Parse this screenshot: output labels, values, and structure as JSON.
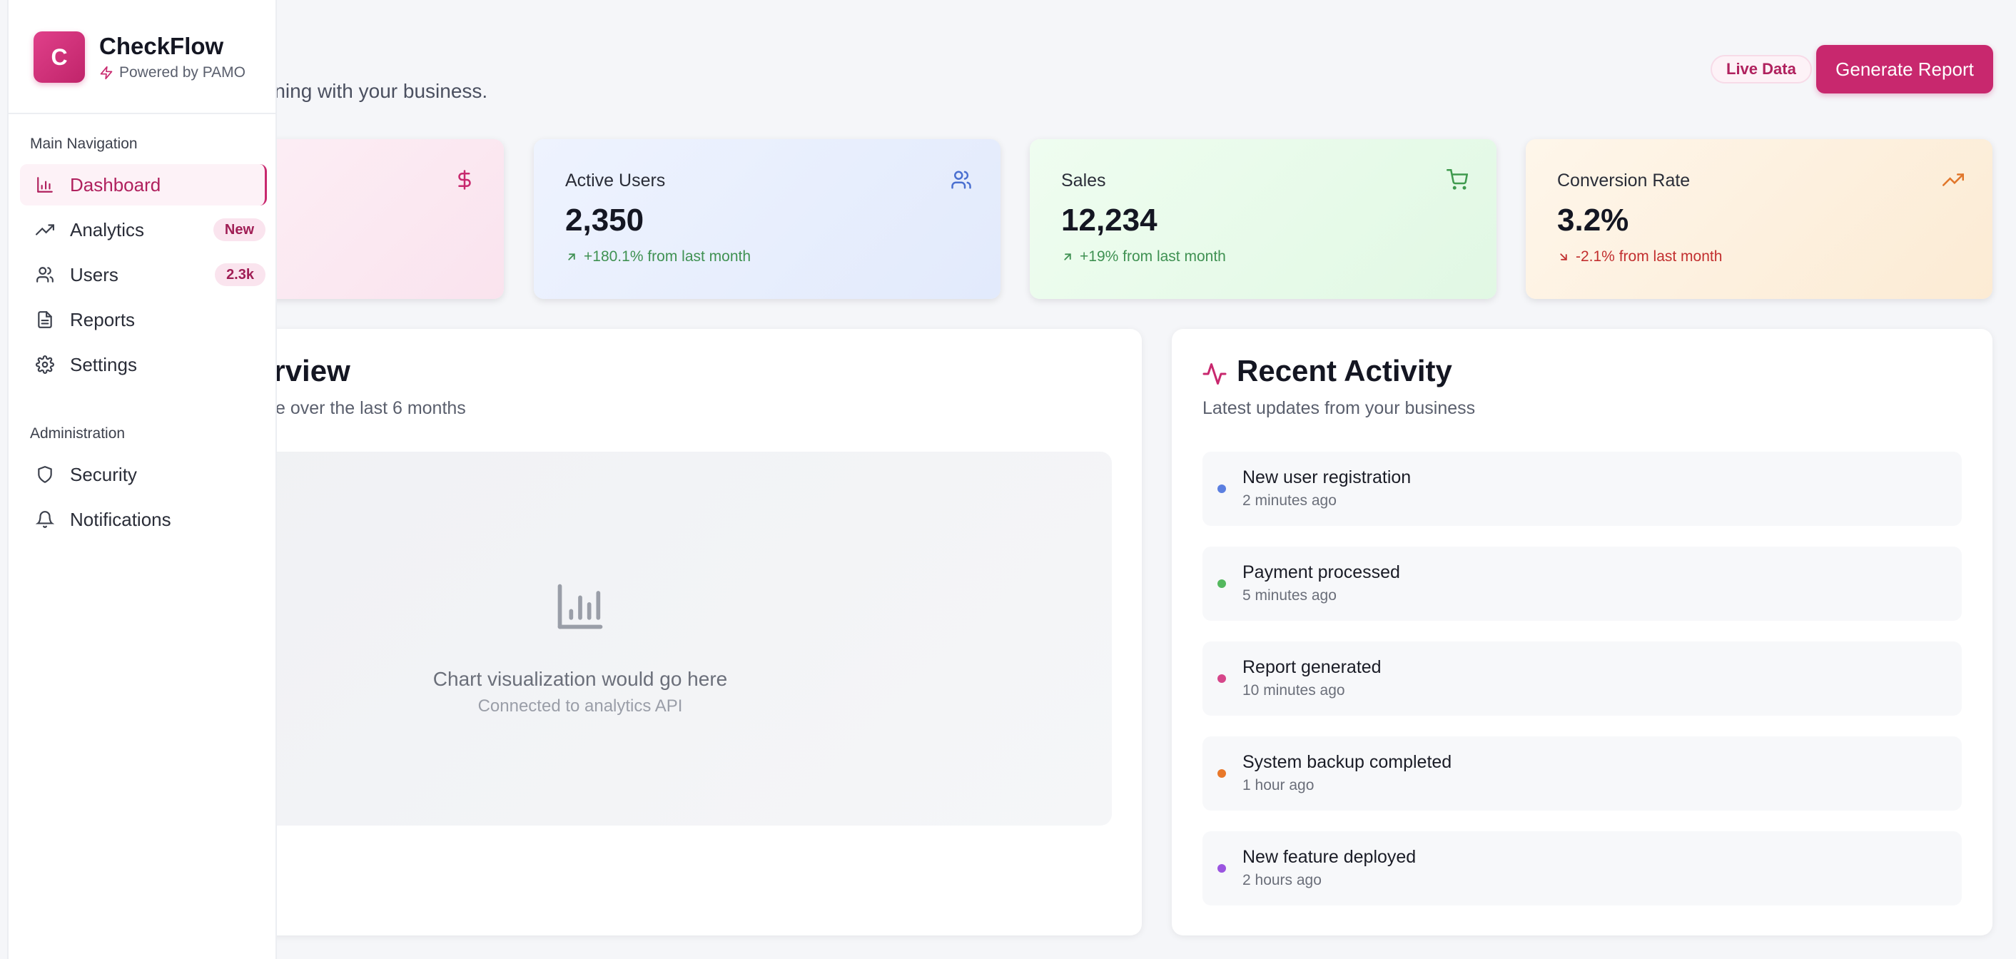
{
  "header": {
    "subtitle": "at's happening with your business.",
    "live_badge": "Live Data",
    "generate_button": "Generate Report"
  },
  "stats": [
    {
      "label": "",
      "value": "",
      "change": "",
      "icon": "dollar-icon"
    },
    {
      "label": "Active Users",
      "value": "2,350",
      "change": "+180.1% from last month",
      "trend": "up",
      "icon": "users-icon"
    },
    {
      "label": "Sales",
      "value": "12,234",
      "change": "+19% from last month",
      "trend": "up",
      "icon": "cart-icon"
    },
    {
      "label": "Conversion Rate",
      "value": "3.2%",
      "change": "-2.1% from last month",
      "trend": "down",
      "icon": "trending-up-icon"
    }
  ],
  "overview": {
    "title": "erview",
    "subtitle": "e over the last 6 months",
    "placeholder": "Chart visualization would go here",
    "placeholder_sub": "Connected to analytics API"
  },
  "activity": {
    "title": "Recent Activity",
    "subtitle": "Latest updates from your business",
    "items": [
      {
        "title": "New user registration",
        "time": "2 minutes ago",
        "color": "#5b7fe0"
      },
      {
        "title": "Payment processed",
        "time": "5 minutes ago",
        "color": "#54b85e"
      },
      {
        "title": "Report generated",
        "time": "10 minutes ago",
        "color": "#d6468a"
      },
      {
        "title": "System backup completed",
        "time": "1 hour ago",
        "color": "#e8782a"
      },
      {
        "title": "New feature deployed",
        "time": "2 hours ago",
        "color": "#9b55e0"
      }
    ]
  },
  "sidebar": {
    "logo_letter": "C",
    "app_name": "CheckFlow",
    "powered_by": "Powered by PAMO",
    "main_section": "Main Navigation",
    "admin_section": "Administration",
    "main_items": [
      {
        "label": "Dashboard",
        "icon": "bar-chart-icon",
        "active": true
      },
      {
        "label": "Analytics",
        "icon": "trending-up-icon",
        "badge": "New"
      },
      {
        "label": "Users",
        "icon": "users-icon",
        "badge": "2.3k"
      },
      {
        "label": "Reports",
        "icon": "file-icon"
      },
      {
        "label": "Settings",
        "icon": "gear-icon"
      }
    ],
    "admin_items": [
      {
        "label": "Security",
        "icon": "shield-icon"
      },
      {
        "label": "Notifications",
        "icon": "bell-icon"
      }
    ]
  },
  "colors": {
    "accent": "#c8286e",
    "positive": "#3f9152",
    "negative": "#c22f2f"
  }
}
